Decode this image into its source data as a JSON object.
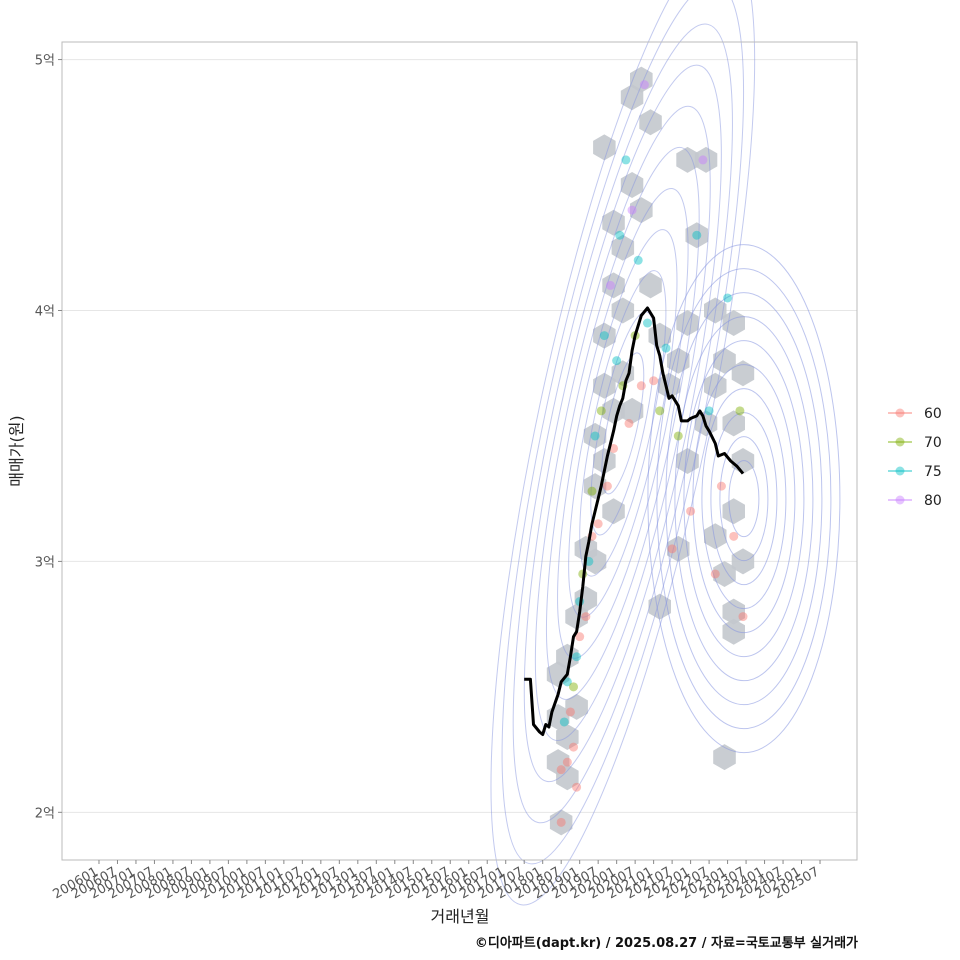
{
  "caption": "©디아파트(dapt.kr) / 2025.08.27 / 자료=국토교통부 실거래가",
  "chart_data": {
    "type": "scatter",
    "xlabel": "거래년월",
    "ylabel": "매매가(원)",
    "x_ticks": [
      "200601",
      "200607",
      "200701",
      "200707",
      "200801",
      "200807",
      "200901",
      "200907",
      "201001",
      "201007",
      "201101",
      "201107",
      "201201",
      "201207",
      "201301",
      "201307",
      "201401",
      "201407",
      "201501",
      "201507",
      "201601",
      "201607",
      "201701",
      "201707",
      "201801",
      "201807",
      "201901",
      "201907",
      "202001",
      "202007",
      "202101",
      "202107",
      "202201",
      "202207",
      "202301",
      "202307",
      "202401",
      "202407",
      "202501",
      "202507"
    ],
    "y_ticks": [
      {
        "value": 2,
        "label": "2억"
      },
      {
        "value": 3,
        "label": "3억"
      },
      {
        "value": 4,
        "label": "4억"
      },
      {
        "value": 5,
        "label": "5억"
      }
    ],
    "ylim": [
      1.81,
      5.07
    ],
    "xlim": [
      "200501",
      "202607"
    ],
    "grid": true,
    "legend_position": "right",
    "series_colors": {
      "60": "#F8766D",
      "70": "#7CAE00",
      "75": "#00BFC4",
      "80": "#C77CFF"
    },
    "legend": [
      "60",
      "70",
      "75",
      "80"
    ],
    "trend_line": [
      [
        "201707",
        2.53
      ],
      [
        "201709",
        2.53
      ],
      [
        "201710",
        2.35
      ],
      [
        "201712",
        2.32
      ],
      [
        "201801",
        2.31
      ],
      [
        "201802",
        2.35
      ],
      [
        "201803",
        2.34
      ],
      [
        "201804",
        2.4
      ],
      [
        "201806",
        2.47
      ],
      [
        "201807",
        2.52
      ],
      [
        "201809",
        2.55
      ],
      [
        "201810",
        2.62
      ],
      [
        "201811",
        2.7
      ],
      [
        "201812",
        2.72
      ],
      [
        "201901",
        2.8
      ],
      [
        "201902",
        2.9
      ],
      [
        "201903",
        3.02
      ],
      [
        "201904",
        3.08
      ],
      [
        "201905",
        3.15
      ],
      [
        "201906",
        3.2
      ],
      [
        "201908",
        3.3
      ],
      [
        "201910",
        3.42
      ],
      [
        "201912",
        3.52
      ],
      [
        "202001",
        3.58
      ],
      [
        "202002",
        3.62
      ],
      [
        "202003",
        3.65
      ],
      [
        "202004",
        3.72
      ],
      [
        "202005",
        3.75
      ],
      [
        "202006",
        3.84
      ],
      [
        "202007",
        3.9
      ],
      [
        "202009",
        3.98
      ],
      [
        "202011",
        4.01
      ],
      [
        "202012",
        3.99
      ],
      [
        "202101",
        3.97
      ],
      [
        "202102",
        3.86
      ],
      [
        "202103",
        3.82
      ],
      [
        "202104",
        3.75
      ],
      [
        "202105",
        3.7
      ],
      [
        "202106",
        3.65
      ],
      [
        "202107",
        3.66
      ],
      [
        "202108",
        3.64
      ],
      [
        "202109",
        3.62
      ],
      [
        "202110",
        3.56
      ],
      [
        "202112",
        3.56
      ],
      [
        "202201",
        3.57
      ],
      [
        "202203",
        3.58
      ],
      [
        "202204",
        3.6
      ],
      [
        "202205",
        3.58
      ],
      [
        "202206",
        3.54
      ],
      [
        "202207",
        3.52
      ],
      [
        "202209",
        3.47
      ],
      [
        "202210",
        3.42
      ],
      [
        "202212",
        3.43
      ],
      [
        "202302",
        3.4
      ],
      [
        "202304",
        3.38
      ],
      [
        "202306",
        3.35
      ]
    ],
    "points": [
      {
        "x": "201807",
        "y": 1.96,
        "s": "60"
      },
      {
        "x": "201807",
        "y": 2.17,
        "s": "60"
      },
      {
        "x": "201809",
        "y": 2.2,
        "s": "60"
      },
      {
        "x": "201808",
        "y": 2.36,
        "s": "75"
      },
      {
        "x": "201809",
        "y": 2.52,
        "s": "75"
      },
      {
        "x": "201810",
        "y": 2.4,
        "s": "60"
      },
      {
        "x": "201811",
        "y": 2.26,
        "s": "60"
      },
      {
        "x": "201811",
        "y": 2.5,
        "s": "70"
      },
      {
        "x": "201812",
        "y": 2.62,
        "s": "75"
      },
      {
        "x": "201812",
        "y": 2.1,
        "s": "60"
      },
      {
        "x": "201901",
        "y": 2.7,
        "s": "60"
      },
      {
        "x": "201901",
        "y": 2.84,
        "s": "75"
      },
      {
        "x": "201902",
        "y": 2.95,
        "s": "70"
      },
      {
        "x": "201903",
        "y": 2.78,
        "s": "60"
      },
      {
        "x": "201904",
        "y": 3.0,
        "s": "75"
      },
      {
        "x": "201905",
        "y": 3.1,
        "s": "60"
      },
      {
        "x": "201905",
        "y": 3.28,
        "s": "70"
      },
      {
        "x": "201906",
        "y": 3.5,
        "s": "75"
      },
      {
        "x": "201907",
        "y": 3.15,
        "s": "60"
      },
      {
        "x": "201908",
        "y": 3.6,
        "s": "70"
      },
      {
        "x": "201909",
        "y": 3.9,
        "s": "75"
      },
      {
        "x": "201910",
        "y": 3.3,
        "s": "60"
      },
      {
        "x": "201911",
        "y": 4.1,
        "s": "80"
      },
      {
        "x": "201912",
        "y": 3.45,
        "s": "60"
      },
      {
        "x": "202001",
        "y": 3.8,
        "s": "75"
      },
      {
        "x": "202002",
        "y": 4.3,
        "s": "75"
      },
      {
        "x": "202003",
        "y": 3.7,
        "s": "70"
      },
      {
        "x": "202004",
        "y": 4.6,
        "s": "75"
      },
      {
        "x": "202005",
        "y": 3.55,
        "s": "60"
      },
      {
        "x": "202006",
        "y": 4.4,
        "s": "80"
      },
      {
        "x": "202007",
        "y": 3.9,
        "s": "70"
      },
      {
        "x": "202008",
        "y": 4.2,
        "s": "75"
      },
      {
        "x": "202009",
        "y": 3.7,
        "s": "60"
      },
      {
        "x": "202010",
        "y": 4.9,
        "s": "80"
      },
      {
        "x": "202011",
        "y": 3.95,
        "s": "75"
      },
      {
        "x": "202101",
        "y": 3.72,
        "s": "60"
      },
      {
        "x": "202103",
        "y": 3.6,
        "s": "70"
      },
      {
        "x": "202105",
        "y": 3.85,
        "s": "75"
      },
      {
        "x": "202107",
        "y": 3.05,
        "s": "60"
      },
      {
        "x": "202109",
        "y": 3.5,
        "s": "70"
      },
      {
        "x": "202201",
        "y": 3.2,
        "s": "60"
      },
      {
        "x": "202203",
        "y": 4.3,
        "s": "75"
      },
      {
        "x": "202205",
        "y": 4.6,
        "s": "80"
      },
      {
        "x": "202207",
        "y": 3.6,
        "s": "75"
      },
      {
        "x": "202209",
        "y": 2.95,
        "s": "60"
      },
      {
        "x": "202211",
        "y": 3.3,
        "s": "60"
      },
      {
        "x": "202301",
        "y": 4.05,
        "s": "75"
      },
      {
        "x": "202303",
        "y": 3.1,
        "s": "60"
      },
      {
        "x": "202305",
        "y": 3.6,
        "s": "70"
      },
      {
        "x": "202306",
        "y": 2.78,
        "s": "60"
      }
    ],
    "hexbins": [
      {
        "x": "201807",
        "y": 1.96
      },
      {
        "x": "201806",
        "y": 2.2
      },
      {
        "x": "201809",
        "y": 2.14
      },
      {
        "x": "201806",
        "y": 2.38
      },
      {
        "x": "201809",
        "y": 2.3
      },
      {
        "x": "201806",
        "y": 2.55
      },
      {
        "x": "201812",
        "y": 2.42
      },
      {
        "x": "201809",
        "y": 2.62
      },
      {
        "x": "201812",
        "y": 2.78
      },
      {
        "x": "201903",
        "y": 2.85
      },
      {
        "x": "201903",
        "y": 3.05
      },
      {
        "x": "201906",
        "y": 3.3
      },
      {
        "x": "201906",
        "y": 3.5
      },
      {
        "x": "201909",
        "y": 3.4
      },
      {
        "x": "201909",
        "y": 3.7
      },
      {
        "x": "201912",
        "y": 3.6
      },
      {
        "x": "201909",
        "y": 3.9
      },
      {
        "x": "201912",
        "y": 4.1
      },
      {
        "x": "202003",
        "y": 4.0
      },
      {
        "x": "202003",
        "y": 4.25
      },
      {
        "x": "202006",
        "y": 4.5
      },
      {
        "x": "201912",
        "y": 4.35
      },
      {
        "x": "202006",
        "y": 4.85
      },
      {
        "x": "202009",
        "y": 4.92
      },
      {
        "x": "202012",
        "y": 4.75
      },
      {
        "x": "202009",
        "y": 4.4
      },
      {
        "x": "201909",
        "y": 4.65
      },
      {
        "x": "202012",
        "y": 4.1
      },
      {
        "x": "202103",
        "y": 3.9
      },
      {
        "x": "202106",
        "y": 3.7
      },
      {
        "x": "202109",
        "y": 3.8
      },
      {
        "x": "202112",
        "y": 3.95
      },
      {
        "x": "202203",
        "y": 4.3
      },
      {
        "x": "202112",
        "y": 4.6
      },
      {
        "x": "202206",
        "y": 4.6
      },
      {
        "x": "202209",
        "y": 4.0
      },
      {
        "x": "202212",
        "y": 3.8
      },
      {
        "x": "202303",
        "y": 3.55
      },
      {
        "x": "202306",
        "y": 3.4
      },
      {
        "x": "202303",
        "y": 3.2
      },
      {
        "x": "202209",
        "y": 3.1
      },
      {
        "x": "202212",
        "y": 2.95
      },
      {
        "x": "202303",
        "y": 2.8
      },
      {
        "x": "202306",
        "y": 3.0
      },
      {
        "x": "202109",
        "y": 3.05
      },
      {
        "x": "202112",
        "y": 3.4
      },
      {
        "x": "202103",
        "y": 2.82
      },
      {
        "x": "202206",
        "y": 3.55
      },
      {
        "x": "202209",
        "y": 3.7
      },
      {
        "x": "202303",
        "y": 3.95
      },
      {
        "x": "202306",
        "y": 3.75
      },
      {
        "x": "202212",
        "y": 2.22
      },
      {
        "x": "202303",
        "y": 2.72
      },
      {
        "x": "201906",
        "y": 3.0
      },
      {
        "x": "201912",
        "y": 3.2
      },
      {
        "x": "202003",
        "y": 3.75
      },
      {
        "x": "202006",
        "y": 3.6
      }
    ],
    "density_center": [
      "202305",
      3.25
    ]
  }
}
